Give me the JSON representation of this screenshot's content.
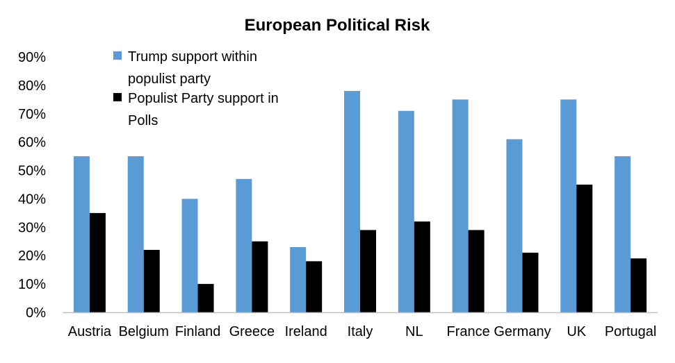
{
  "colors": {
    "series_trump": "#5b9bd5",
    "series_populist": "#000000",
    "axis": "#bfbfbf",
    "background": "#ffffff"
  },
  "chart_data": {
    "type": "bar",
    "title": "European Political Risk",
    "xlabel": "",
    "ylabel": "",
    "ylim": [
      0,
      0.9
    ],
    "yticks": [
      0,
      0.1,
      0.2,
      0.3,
      0.4,
      0.5,
      0.6,
      0.7,
      0.8,
      0.9
    ],
    "ytick_labels": [
      "0%",
      "10%",
      "20%",
      "30%",
      "40%",
      "50%",
      "60%",
      "70%",
      "80%",
      "90%"
    ],
    "grid": false,
    "legend_position": "top-left",
    "categories": [
      "Austria",
      "Belgium",
      "Finland",
      "Greece",
      "Ireland",
      "Italy",
      "NL",
      "France",
      "Germany",
      "UK",
      "Portugal"
    ],
    "series": [
      {
        "name": "Trump support within populist party",
        "legend_lines": [
          "Trump support within",
          "populist party"
        ],
        "color": "#5b9bd5",
        "values": [
          0.55,
          0.55,
          0.4,
          0.47,
          0.23,
          0.78,
          0.71,
          0.75,
          0.61,
          0.75,
          0.55
        ]
      },
      {
        "name": "Populist Party support in Polls",
        "legend_lines": [
          "Populist Party support in",
          "Polls"
        ],
        "color": "#000000",
        "values": [
          0.35,
          0.22,
          0.1,
          0.25,
          0.18,
          0.29,
          0.32,
          0.29,
          0.21,
          0.45,
          0.19
        ]
      }
    ]
  }
}
